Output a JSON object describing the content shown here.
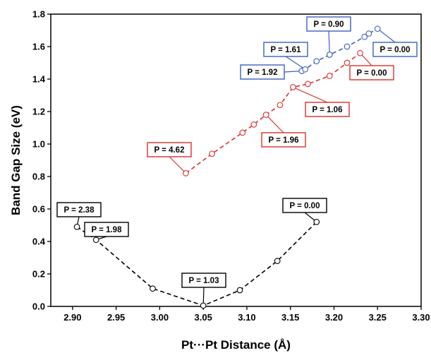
{
  "chart_data": {
    "type": "scatter",
    "title": "",
    "xlabel": "Pt···Pt Distance (Å)",
    "ylabel": "Band Gap Size (eV)",
    "xlim": [
      2.875,
      3.3
    ],
    "ylim": [
      0,
      1.8
    ],
    "xticks": [
      2.9,
      2.95,
      3.0,
      3.05,
      3.1,
      3.15,
      3.2,
      3.25,
      3.3
    ],
    "yticks": [
      0.0,
      0.2,
      0.4,
      0.6,
      0.8,
      1.0,
      1.2,
      1.4,
      1.6,
      1.8
    ],
    "xtick_labels": [
      "2.90",
      "2.95",
      "3.00",
      "3.05",
      "3.10",
      "3.15",
      "3.20",
      "3.25",
      "3.30"
    ],
    "ytick_labels": [
      "0.0",
      "0.2",
      "0.4",
      "0.6",
      "0.8",
      "1.0",
      "1.2",
      "1.4",
      "1.6",
      "1.8"
    ],
    "grid": false,
    "series": [
      {
        "color": "#000000",
        "x": [
          2.905,
          2.927,
          2.992,
          3.05,
          3.092,
          3.135,
          3.18
        ],
        "y": [
          0.49,
          0.41,
          0.11,
          0.005,
          0.1,
          0.28,
          0.52
        ],
        "annotations": [
          {
            "text": "P = 2.38",
            "x": 2.905,
            "y": 0.49
          },
          {
            "text": "P = 1.98",
            "x": 2.927,
            "y": 0.41
          },
          {
            "text": "P = 1.03",
            "x": 3.05,
            "y": 0.005
          },
          {
            "text": "P = 0.00",
            "x": 3.18,
            "y": 0.52
          }
        ]
      },
      {
        "color": "#d9302c",
        "x": [
          3.03,
          3.06,
          3.095,
          3.108,
          3.122,
          3.138,
          3.153,
          3.17,
          3.195,
          3.215,
          3.23
        ],
        "y": [
          0.82,
          0.94,
          1.07,
          1.12,
          1.18,
          1.24,
          1.35,
          1.37,
          1.42,
          1.5,
          1.56
        ],
        "annotations": [
          {
            "text": "P = 4.62",
            "x": 3.03,
            "y": 0.82
          },
          {
            "text": "P = 1.96",
            "x": 3.122,
            "y": 1.18
          },
          {
            "text": "P = 1.06",
            "x": 3.153,
            "y": 1.35
          },
          {
            "text": "P = 0.00",
            "x": 3.23,
            "y": 1.56
          }
        ]
      },
      {
        "color": "#3c5fbf",
        "x": [
          3.163,
          3.167,
          3.18,
          3.195,
          3.215,
          3.235,
          3.24,
          3.25
        ],
        "y": [
          1.45,
          1.46,
          1.51,
          1.55,
          1.6,
          1.66,
          1.68,
          1.71
        ],
        "annotations": [
          {
            "text": "P = 1.92",
            "x": 3.163,
            "y": 1.45
          },
          {
            "text": "P = 1.61",
            "x": 3.167,
            "y": 1.46
          },
          {
            "text": "P = 0.90",
            "x": 3.195,
            "y": 1.55
          },
          {
            "text": "P = 0.00",
            "x": 3.25,
            "y": 1.71
          }
        ]
      }
    ]
  }
}
